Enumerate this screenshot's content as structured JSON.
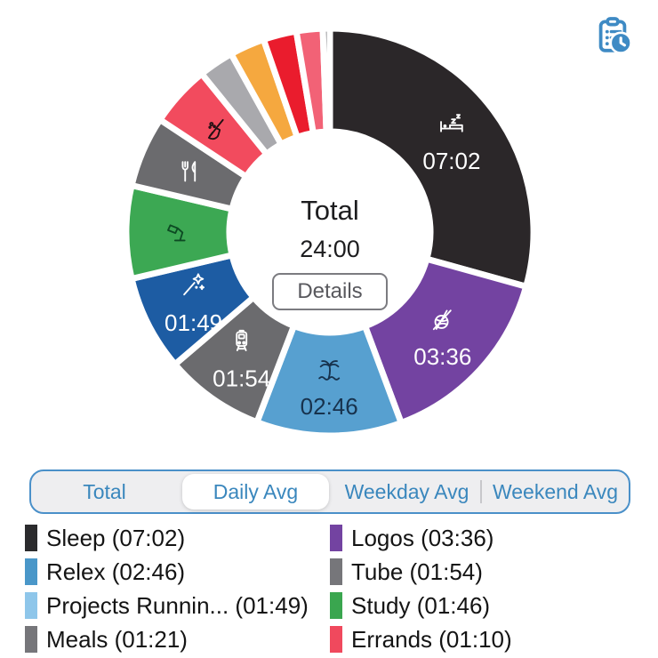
{
  "toolbar": {
    "report_icon": "clipboard-clock-icon",
    "icon_color": "#3e8ac4"
  },
  "donut_center": {
    "title": "Total",
    "value": "24:00",
    "details_label": "Details"
  },
  "tabs": {
    "accent_color": "#3a87bd",
    "items": [
      {
        "label": "Total",
        "selected": false
      },
      {
        "label": "Daily Avg",
        "selected": true
      },
      {
        "label": "Weekday Avg",
        "selected": false
      },
      {
        "label": "Weekend Avg",
        "selected": false
      }
    ]
  },
  "chart_data": {
    "type": "pie",
    "title": "Total",
    "center_value": "24:00",
    "units": "hh:mm (minutes)",
    "total_minutes": 1440,
    "start_angle_deg": 0,
    "direction": "clockwise",
    "segments": [
      {
        "label": "Sleep",
        "time": "07:02",
        "minutes": 422,
        "color": "#2b2729",
        "icon": "bed-icon",
        "icon_color": "#ffffff",
        "time_color": "#ffffff",
        "show_time": true
      },
      {
        "label": "Logos",
        "time": "03:36",
        "minutes": 216,
        "color": "#7343a1",
        "icon": "yarn-icon",
        "icon_color": "#ffffff",
        "time_color": "#ffffff",
        "show_time": true
      },
      {
        "label": "Relex",
        "time": "02:46",
        "minutes": 166,
        "color": "#57a0d0",
        "icon": "palm-tree-icon",
        "icon_color": "#17324d",
        "time_color": "#17324d",
        "show_time": true
      },
      {
        "label": "Tube",
        "time": "01:54",
        "minutes": 114,
        "color": "#6b6b6e",
        "icon": "train-icon",
        "icon_color": "#ffffff",
        "time_color": "#ffffff",
        "show_time": true
      },
      {
        "label": "Projects Running",
        "time": "01:49",
        "minutes": 109,
        "color": "#1d5ca3",
        "icon": "magic-wand-icon",
        "icon_color": "#ffffff",
        "time_color": "#ffffff",
        "show_time": true
      },
      {
        "label": "Study",
        "time": "01:46",
        "minutes": 106,
        "color": "#3ca853",
        "icon": "desk-lamp-icon",
        "icon_color": "#0d4a23",
        "show_time": false
      },
      {
        "label": "Meals",
        "time": "01:21",
        "minutes": 81,
        "color": "#6b6b6e",
        "icon": "utensils-icon",
        "icon_color": "#ffffff",
        "show_time": false
      },
      {
        "label": "Errands",
        "time": "01:10",
        "minutes": 70,
        "color": "#f24b5e",
        "icon": "broom-icon",
        "icon_color": "#241013",
        "show_time": false
      },
      {
        "label": "",
        "minutes": 40,
        "color": "#a9a9ad",
        "icon": null,
        "show_time": false
      },
      {
        "label": "",
        "minutes": 40,
        "color": "#f5a83f",
        "icon": null,
        "show_time": false
      },
      {
        "label": "",
        "minutes": 38,
        "color": "#ea1c2d",
        "icon": null,
        "show_time": false
      },
      {
        "label": "",
        "minutes": 30,
        "color": "#f26276",
        "icon": null,
        "show_time": false
      },
      {
        "label": "",
        "minutes": 8,
        "color": "#7d7d80",
        "icon": null,
        "show_time": false
      }
    ]
  },
  "legend": {
    "items": [
      {
        "label": "Sleep",
        "time": "07:02",
        "color": "#2b2b2d"
      },
      {
        "label": "Logos",
        "time": "03:36",
        "color": "#7343a1"
      },
      {
        "label": "Relex",
        "time": "02:46",
        "color": "#4a97c9"
      },
      {
        "label": "Tube ",
        "time": "01:54",
        "color": "#76767a"
      },
      {
        "label": "Projects Runnin...",
        "time": "01:49",
        "color": "#8ec6ea"
      },
      {
        "label": "Study",
        "time": "01:46",
        "color": "#3aa64f"
      },
      {
        "label": "Meals",
        "time": "01:21",
        "color": "#76767a"
      },
      {
        "label": "Errands",
        "time": "01:10",
        "color": "#f0495d"
      }
    ]
  }
}
